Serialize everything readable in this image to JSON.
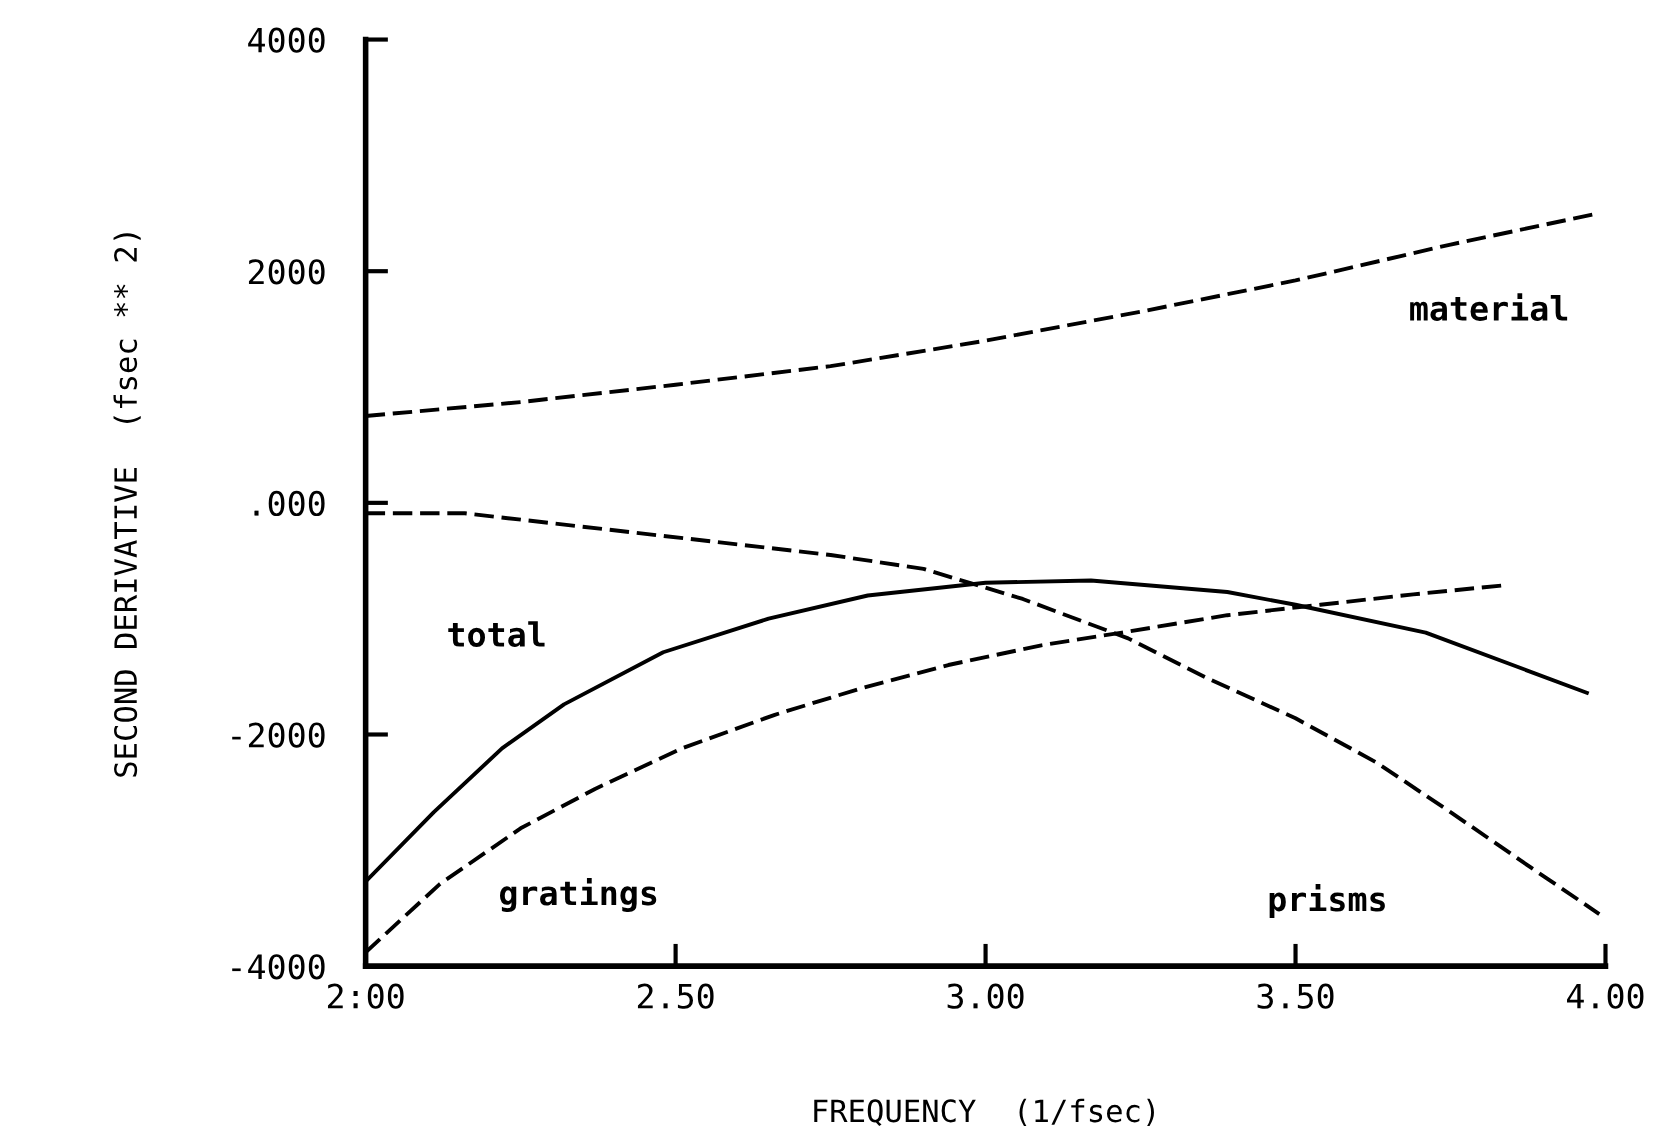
{
  "chart_data": {
    "type": "line",
    "xlabel": "FREQUENCY  (1/fsec)",
    "ylabel": "SECOND DERIVATIVE  (fsec ** 2)",
    "xlim": [
      2.0,
      4.0
    ],
    "xticks": [
      {
        "value": 2.0,
        "label": "2:00"
      },
      {
        "value": 2.5,
        "label": "2.50"
      },
      {
        "value": 3.0,
        "label": "3.00"
      },
      {
        "value": 3.5,
        "label": "3.50"
      },
      {
        "value": 4.0,
        "label": "4.00"
      }
    ],
    "ylim": [
      -4000,
      4000
    ],
    "yticks": [
      -4000,
      -2000,
      {
        "value": 0,
        "label": ".000"
      },
      2000,
      4000
    ],
    "grid": false,
    "legend": false,
    "series": [
      {
        "name": "material",
        "color": "#000000",
        "line_style": "dashed",
        "x": [
          2.0,
          2.25,
          2.5,
          2.75,
          3.0,
          3.25,
          3.5,
          3.75,
          3.98
        ],
        "values": [
          750,
          870,
          1020,
          1180,
          1400,
          1650,
          1920,
          2230,
          2490
        ]
      },
      {
        "name": "total",
        "color": "#000000",
        "line_style": "solid",
        "x": [
          2.0,
          2.11,
          2.22,
          2.32,
          2.48,
          2.65,
          2.81,
          3.0,
          3.17,
          3.39,
          3.5,
          3.71,
          3.97
        ],
        "values": [
          -3270,
          -2670,
          -2120,
          -1740,
          -1290,
          -1000,
          -800,
          -690,
          -670,
          -770,
          -880,
          -1120,
          -1640
        ]
      },
      {
        "name": "gratings",
        "color": "#000000",
        "line_style": "dashed",
        "x": [
          2.0,
          2.12,
          2.25,
          2.37,
          2.51,
          2.66,
          2.8,
          2.94,
          3.09,
          3.22,
          3.39,
          3.54,
          3.69,
          3.84
        ],
        "values": [
          -3880,
          -3290,
          -2810,
          -2470,
          -2120,
          -1830,
          -1600,
          -1400,
          -1230,
          -1120,
          -970,
          -880,
          -790,
          -710
        ]
      },
      {
        "name": "prisms",
        "color": "#000000",
        "line_style": "dashed",
        "x": [
          2.0,
          2.16,
          2.75,
          2.9,
          3.06,
          3.23,
          3.36,
          3.5,
          3.63,
          3.75,
          3.88,
          3.99
        ],
        "values": [
          -90,
          -90,
          -450,
          -570,
          -830,
          -1170,
          -1520,
          -1860,
          -2240,
          -2670,
          -3150,
          -3550
        ]
      }
    ]
  }
}
